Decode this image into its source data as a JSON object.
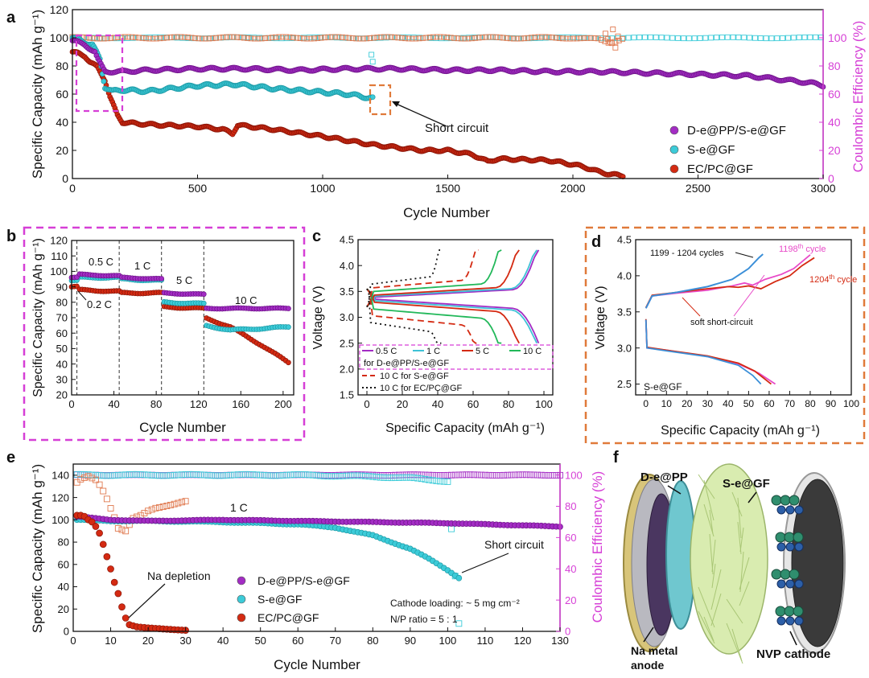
{
  "colors": {
    "purple": "#a32cc4",
    "cyan": "#3ccbd8",
    "red": "#d42a12",
    "orange": "#e07a50",
    "magenta": "#d63fd6",
    "dash_orange": "#e07a3a",
    "green": "#22b85a",
    "blue": "#3b8fd8",
    "pink": "#e84ac8"
  },
  "panels": {
    "a": "a",
    "b": "b",
    "c": "c",
    "d": "d",
    "e": "e",
    "f": "f"
  },
  "chart_data": [
    {
      "id": "a",
      "type": "scatter",
      "xlabel": "Cycle  Number",
      "ylabel": "Specific Capacity (mAh g⁻¹)",
      "y2label": "Coulombic Efficiency (%)",
      "xlim": [
        0,
        3000
      ],
      "ylim": [
        0,
        120
      ],
      "y2lim": [
        0,
        120
      ],
      "xticks": [
        "0",
        "500",
        "1000",
        "1500",
        "2000",
        "2500",
        "3000"
      ],
      "yticks": [
        "0",
        "20",
        "40",
        "60",
        "80",
        "100",
        "120"
      ],
      "y2ticks": [
        "0",
        "20",
        "40",
        "60",
        "80",
        "100"
      ],
      "annotation": "Short circuit",
      "legend": [
        "D-e@PP/S-e@GF",
        "S-e@GF",
        "EC/PC@GF"
      ],
      "series": [
        {
          "name": "D-e@PP/S-e@GF",
          "x": [
            0,
            20,
            50,
            90,
            100,
            130,
            200,
            300,
            500,
            700,
            900,
            1100,
            1300,
            1500,
            1700,
            1900,
            2100,
            2300,
            2500,
            2700,
            2850,
            2950,
            3000
          ],
          "y": [
            98,
            97,
            95,
            90,
            85,
            76,
            76,
            77,
            78,
            78,
            77,
            78,
            78,
            77,
            77,
            76,
            76,
            75,
            74,
            73,
            70,
            68,
            66
          ]
        },
        {
          "name": "S-e@GF",
          "x": [
            0,
            20,
            50,
            80,
            110,
            130,
            160,
            200,
            300,
            400,
            500,
            650,
            800,
            950,
            1100,
            1200
          ],
          "y": [
            100,
            99,
            97,
            95,
            85,
            65,
            62,
            63,
            62,
            64,
            66,
            67,
            64,
            62,
            60,
            57
          ]
        },
        {
          "name": "EC/PC@GF",
          "x": [
            0,
            20,
            50,
            70,
            100,
            130,
            150,
            180,
            200,
            260,
            350,
            500,
            600,
            640,
            660,
            800,
            1000,
            1200,
            1400,
            1500,
            1600,
            1660,
            1700,
            1900,
            2000,
            2050,
            2100,
            2150,
            2200
          ],
          "y": [
            90,
            89,
            87,
            83,
            79,
            70,
            58,
            45,
            40,
            39,
            38,
            37,
            35,
            32,
            38,
            35,
            30,
            24,
            20,
            20,
            17,
            12,
            14,
            13,
            10,
            8,
            5,
            3,
            2
          ]
        },
        {
          "name": "CE D-e@PP/S-e@GF",
          "axis": "y2",
          "x": [
            0,
            500,
            1000,
            1500,
            2000,
            2500,
            3000
          ],
          "y": [
            100,
            100,
            100,
            100,
            100,
            100,
            100
          ]
        },
        {
          "name": "CE EC/PC@GF",
          "axis": "y2",
          "x": [
            0,
            500,
            1000,
            1500,
            2000,
            2100,
            2150,
            2200
          ],
          "y": [
            100,
            100,
            100,
            100,
            100,
            99,
            96,
            100
          ]
        },
        {
          "name": "CE S-e@GF",
          "axis": "y2",
          "x": [
            0,
            400,
            800,
            1200
          ],
          "y": [
            100,
            100,
            100,
            83
          ]
        }
      ]
    },
    {
      "id": "b",
      "type": "scatter",
      "xlabel": "Cycle Number",
      "ylabel": "Specific Capacity (mAh g⁻¹)",
      "xlim": [
        0,
        210
      ],
      "ylim": [
        20,
        120
      ],
      "xticks": [
        "0",
        "40",
        "80",
        "120",
        "160",
        "200"
      ],
      "yticks": [
        "20",
        "30",
        "40",
        "50",
        "60",
        "70",
        "80",
        "90",
        "100",
        "110",
        "120"
      ],
      "rate_labels": [
        "0.5 C",
        "1 C",
        "5 C",
        "10 C",
        "0.2 C"
      ],
      "series": [
        {
          "name": "D-e@PP/S-e@GF",
          "x": [
            0,
            5,
            6,
            45,
            46,
            85,
            86,
            125,
            126,
            205
          ],
          "y": [
            96,
            96,
            98,
            97,
            96,
            95,
            86,
            85,
            76,
            76
          ]
        },
        {
          "name": "S-e@GF",
          "x": [
            0,
            5,
            6,
            45,
            46,
            85,
            86,
            125,
            126,
            150,
            180,
            205
          ],
          "y": [
            94,
            94,
            96,
            96,
            95,
            94,
            80,
            79,
            65,
            62,
            63,
            64
          ]
        },
        {
          "name": "EC/PC@GF",
          "x": [
            0,
            5,
            6,
            45,
            46,
            85,
            86,
            125,
            126,
            150,
            180,
            205
          ],
          "y": [
            90,
            90,
            88,
            87,
            86,
            86,
            77,
            76,
            70,
            64,
            52,
            41
          ]
        }
      ]
    },
    {
      "id": "c",
      "type": "line",
      "xlabel": "Specific Capacity (mAh g⁻¹)",
      "ylabel": "Voltage (V)",
      "xlim": [
        -5,
        105
      ],
      "ylim": [
        1.5,
        4.5
      ],
      "xticks": [
        "0",
        "20",
        "40",
        "60",
        "80",
        "100"
      ],
      "yticks": [
        "1.5",
        "2.0",
        "2.5",
        "3.0",
        "3.5",
        "4.0",
        "4.5"
      ],
      "legend_rates": [
        "0.5 C",
        "1 C",
        "5 C",
        "10 C"
      ],
      "legend_group": "for D-e@PP/S-e@GF",
      "legend_extra": [
        "10 C for S-e@GF",
        "10 C for EC/PC@GF"
      ],
      "series": [
        {
          "name": "0.5 C",
          "capacity": 97
        },
        {
          "name": "1 C",
          "capacity": 96
        },
        {
          "name": "5 C",
          "capacity": 86
        },
        {
          "name": "10 C",
          "capacity": 76
        },
        {
          "name": "10 C for S-e@GF",
          "capacity": 63
        },
        {
          "name": "10 C for EC/PC@GF",
          "capacity": 42
        }
      ]
    },
    {
      "id": "d",
      "type": "line",
      "xlabel": "Specific Capacity (mAh g⁻¹)",
      "ylabel": "Voltage (V)",
      "xlim": [
        -5,
        100
      ],
      "ylim": [
        2.35,
        4.5
      ],
      "xticks": [
        "0",
        "10",
        "20",
        "30",
        "40",
        "50",
        "60",
        "70",
        "80",
        "90",
        "100"
      ],
      "yticks": [
        "2.5",
        "3.0",
        "3.5",
        "4.0",
        "4.5"
      ],
      "annotations": [
        "1199 - 1204 cycles",
        "1198",
        "th",
        " cycle",
        "1204",
        "th",
        " cycle",
        "soft short-circuit"
      ],
      "sample_label": "S-e@GF"
    },
    {
      "id": "e",
      "type": "scatter",
      "xlabel": "Cycle Number",
      "ylabel": "Specific Capacity (mAh g⁻¹)",
      "y2label": "Coulombic Efficiency (%)",
      "xlim": [
        0,
        130
      ],
      "ylim": [
        0,
        150
      ],
      "y2lim": [
        0,
        107
      ],
      "xticks": [
        "0",
        "10",
        "20",
        "30",
        "40",
        "50",
        "60",
        "70",
        "80",
        "90",
        "100",
        "110",
        "120",
        "130"
      ],
      "yticks": [
        "0",
        "20",
        "40",
        "60",
        "80",
        "100",
        "120",
        "140"
      ],
      "y2ticks": [
        "0",
        "20",
        "40",
        "60",
        "80",
        "100"
      ],
      "rate_label": "1 C",
      "annotations": [
        "Short circuit",
        "Na depletion"
      ],
      "legend": [
        "D-e@PP/S-e@GF",
        "S-e@GF",
        "EC/PC@GF"
      ],
      "notes": [
        "Cathode loading: ~ 5 mg cm⁻²",
        "N/P ratio = 5 : 1"
      ],
      "series": [
        {
          "name": "D-e@PP/S-e@GF",
          "x": [
            1,
            10,
            20,
            40,
            60,
            80,
            100,
            110,
            120,
            130
          ],
          "y": [
            103,
            100,
            99,
            100,
            99,
            98,
            97,
            96,
            95,
            94
          ]
        },
        {
          "name": "S-e@GF",
          "x": [
            1,
            10,
            20,
            40,
            60,
            70,
            80,
            90,
            95,
            100,
            103
          ],
          "y": [
            100,
            99,
            99,
            98,
            96,
            93,
            86,
            74,
            65,
            55,
            48
          ]
        },
        {
          "name": "EC/PC@GF",
          "x": [
            1,
            2,
            3,
            4,
            5,
            6,
            7,
            8,
            9,
            10,
            11,
            12,
            13,
            14,
            15,
            17,
            20,
            25,
            30
          ],
          "y": [
            104,
            104,
            103,
            100,
            98,
            94,
            88,
            78,
            67,
            56,
            44,
            34,
            22,
            12,
            6,
            4,
            3,
            2,
            1
          ]
        },
        {
          "name": "CE D-e@PP/S-e@GF",
          "axis": "y2",
          "x": [
            1,
            20,
            40,
            60,
            80,
            100,
            120,
            130
          ],
          "y": [
            100,
            100,
            100,
            100,
            100,
            100,
            100,
            100
          ]
        },
        {
          "name": "CE S-e@GF",
          "axis": "y2",
          "x": [
            1,
            20,
            40,
            60,
            80,
            90,
            95,
            100,
            103
          ],
          "y": [
            100,
            100,
            100,
            100,
            99,
            98,
            97,
            96,
            5
          ]
        },
        {
          "name": "CE EC/PC@GF",
          "axis": "y2",
          "x": [
            1,
            2,
            3,
            4,
            5,
            6,
            7,
            8,
            9,
            10,
            11,
            12,
            14,
            16,
            18,
            20,
            22,
            24,
            26,
            28,
            30
          ],
          "y": [
            95,
            97,
            98,
            99,
            98,
            97,
            94,
            90,
            85,
            79,
            73,
            66,
            64,
            72,
            74,
            77,
            79,
            80,
            81,
            82,
            83
          ]
        }
      ]
    }
  ],
  "panel_f": {
    "labels": [
      "D-e@PP",
      "S-e@GF",
      "Na metal",
      "anode",
      "NVP cathode"
    ]
  }
}
